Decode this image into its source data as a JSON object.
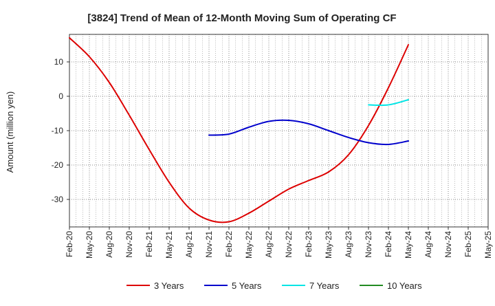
{
  "chart_data": {
    "type": "line",
    "title": "[3824]  Trend of Mean of 12-Month Moving Sum of Operating CF",
    "xlabel": "",
    "ylabel": "Amount (million yen)",
    "ylim": [
      -38,
      18
    ],
    "yticks": [
      10,
      0,
      -10,
      -20,
      -30
    ],
    "ytick_labels": [
      "10",
      "0",
      "-10",
      "-20",
      "-30"
    ],
    "x_categories": [
      "Feb-20",
      "May-20",
      "Aug-20",
      "Nov-20",
      "Feb-21",
      "May-21",
      "Aug-21",
      "Nov-21",
      "Feb-22",
      "May-22",
      "Aug-22",
      "Nov-22",
      "Feb-23",
      "May-23",
      "Aug-23",
      "Nov-23",
      "Feb-24",
      "May-24",
      "Aug-24",
      "Nov-24",
      "Feb-25",
      "May-25"
    ],
    "grid": true,
    "legend_position": "bottom",
    "series": [
      {
        "name": "3 Years",
        "color": "#dd0000",
        "points": [
          [
            0,
            17
          ],
          [
            1,
            11.5
          ],
          [
            2,
            4
          ],
          [
            3,
            -5.5
          ],
          [
            4,
            -15.5
          ],
          [
            5,
            -25
          ],
          [
            6,
            -32.5
          ],
          [
            7,
            -36
          ],
          [
            8,
            -36.5
          ],
          [
            9,
            -34
          ],
          [
            10,
            -30.5
          ],
          [
            11,
            -27
          ],
          [
            12,
            -24.5
          ],
          [
            13,
            -22
          ],
          [
            14,
            -17
          ],
          [
            15,
            -8.5
          ],
          [
            16,
            2.5
          ],
          [
            17,
            15
          ]
        ]
      },
      {
        "name": "5 Years",
        "color": "#0000cc",
        "points": [
          [
            7,
            -11.3
          ],
          [
            8,
            -11
          ],
          [
            9,
            -9
          ],
          [
            10,
            -7.3
          ],
          [
            11,
            -7
          ],
          [
            12,
            -8
          ],
          [
            13,
            -10
          ],
          [
            14,
            -12
          ],
          [
            15,
            -13.5
          ],
          [
            16,
            -14
          ],
          [
            17,
            -13
          ]
        ]
      },
      {
        "name": "7 Years",
        "color": "#00e5e5",
        "points": [
          [
            15,
            -2.5
          ],
          [
            16,
            -2.5
          ],
          [
            17,
            -1
          ]
        ]
      },
      {
        "name": "10 Years",
        "color": "#228b22",
        "points": []
      }
    ]
  }
}
